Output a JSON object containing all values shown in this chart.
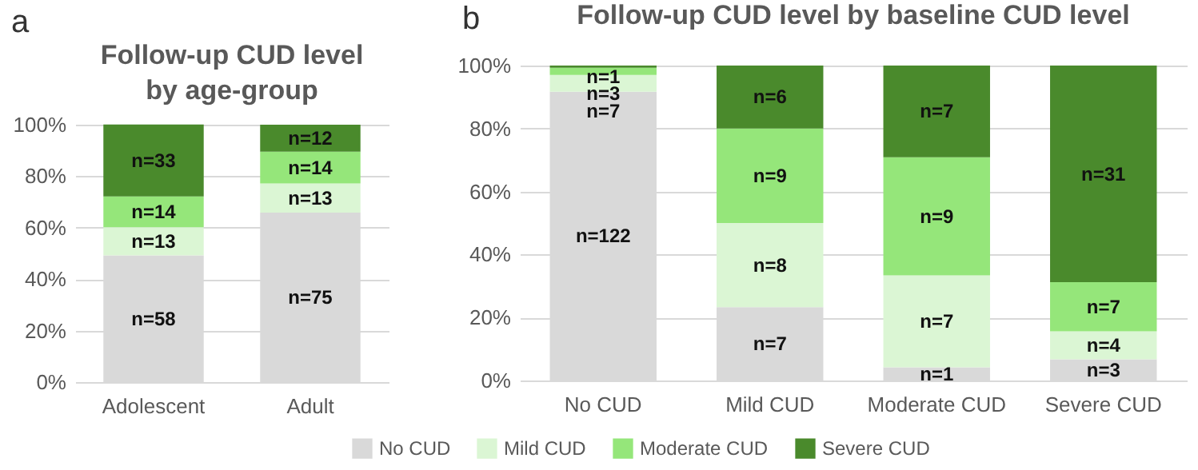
{
  "chart_data": [
    {
      "type": "bar",
      "title": "Follow-up CUD level\nby age-group",
      "stacked": true,
      "categories": [
        "Adolescent",
        "Adult"
      ],
      "ylim": [
        0,
        100
      ],
      "yticks": [
        {
          "value": 0,
          "label": "0%"
        },
        {
          "value": 20,
          "label": "20%"
        },
        {
          "value": 40,
          "label": "40%"
        },
        {
          "value": 60,
          "label": "60%"
        },
        {
          "value": 80,
          "label": "80%"
        },
        {
          "value": 100,
          "label": "100%"
        }
      ],
      "grid": "y",
      "annotations": [
        "a",
        "n=58",
        "n=13",
        "n=14",
        "n=33",
        "n=75",
        "n=13",
        "n=14",
        "n=12"
      ],
      "series": [
        {
          "color": "#d9d9d9",
          "values": [
            49.2,
            65.8
          ]
        },
        {
          "color": "#dbf6d4",
          "values": [
            11.0,
            11.4
          ]
        },
        {
          "color": "#95e67a",
          "values": [
            11.9,
            12.3
          ]
        },
        {
          "color": "#4a8a2c",
          "values": [
            28.0,
            10.5
          ]
        }
      ]
    },
    {
      "type": "bar",
      "title": "Follow-up CUD level by baseline CUD level",
      "stacked": true,
      "legend": "bottom",
      "categories": [
        "No CUD",
        "Mild CUD",
        "Moderate CUD",
        "Severe CUD"
      ],
      "ylim": [
        0,
        100
      ],
      "yticks": [
        {
          "value": 0,
          "label": "0%"
        },
        {
          "value": 20,
          "label": "20%"
        },
        {
          "value": 40,
          "label": "40%"
        },
        {
          "value": 60,
          "label": "60%"
        },
        {
          "value": 80,
          "label": "80%"
        },
        {
          "value": 100,
          "label": "100%"
        }
      ],
      "grid": "y",
      "annotations": [
        "b",
        "n=122",
        "n=7",
        "n=3",
        "n=1",
        "n=7",
        "n=8",
        "n=9",
        "n=6",
        "n=1",
        "n=7",
        "n=9",
        "n=7",
        "n=3",
        "n=4",
        "n=7",
        "n=31"
      ],
      "series": [
        {
          "name": "No CUD",
          "color": "#d9d9d9",
          "values": [
            91.7,
            23.3,
            4.2,
            6.7
          ]
        },
        {
          "name": "Mild CUD",
          "color": "#dbf6d4",
          "values": [
            5.3,
            26.7,
            29.2,
            8.9
          ]
        },
        {
          "name": "Moderate CUD",
          "color": "#95e67a",
          "values": [
            2.3,
            30.0,
            37.5,
            15.6
          ]
        },
        {
          "name": "Severe CUD",
          "color": "#4a8a2c",
          "values": [
            0.7,
            20.0,
            29.1,
            68.8
          ]
        }
      ]
    }
  ]
}
